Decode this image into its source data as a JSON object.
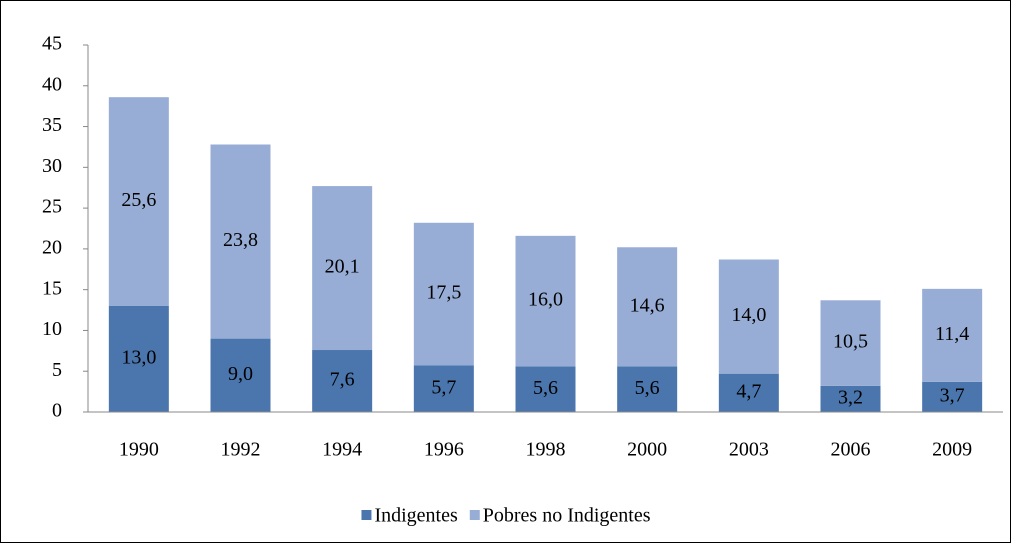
{
  "chart_data": {
    "type": "bar",
    "stacked": true,
    "categories": [
      "1990",
      "1992",
      "1994",
      "1996",
      "1998",
      "2000",
      "2003",
      "2006",
      "2009"
    ],
    "series": [
      {
        "name": "Indigentes",
        "color": "#4a76ad",
        "values": [
          13.0,
          9.0,
          7.6,
          5.7,
          5.6,
          5.6,
          4.7,
          3.2,
          3.7
        ],
        "value_labels": [
          "13,0",
          "9,0",
          "7,6",
          "5,7",
          "5,6",
          "5,6",
          "4,7",
          "3,2",
          "3,7"
        ]
      },
      {
        "name": "Pobres no Indigentes",
        "color": "#97add5",
        "values": [
          25.6,
          23.8,
          20.1,
          17.5,
          16.0,
          14.6,
          14.0,
          10.5,
          11.4
        ],
        "value_labels": [
          "25,6",
          "23,8",
          "20,1",
          "17,5",
          "16,0",
          "14,6",
          "14,0",
          "10,5",
          "11,4"
        ]
      }
    ],
    "ylim": [
      0,
      45
    ],
    "yticks": [
      0,
      5,
      10,
      15,
      20,
      25,
      30,
      35,
      40,
      45
    ],
    "grid": false,
    "legend": "bottom"
  }
}
